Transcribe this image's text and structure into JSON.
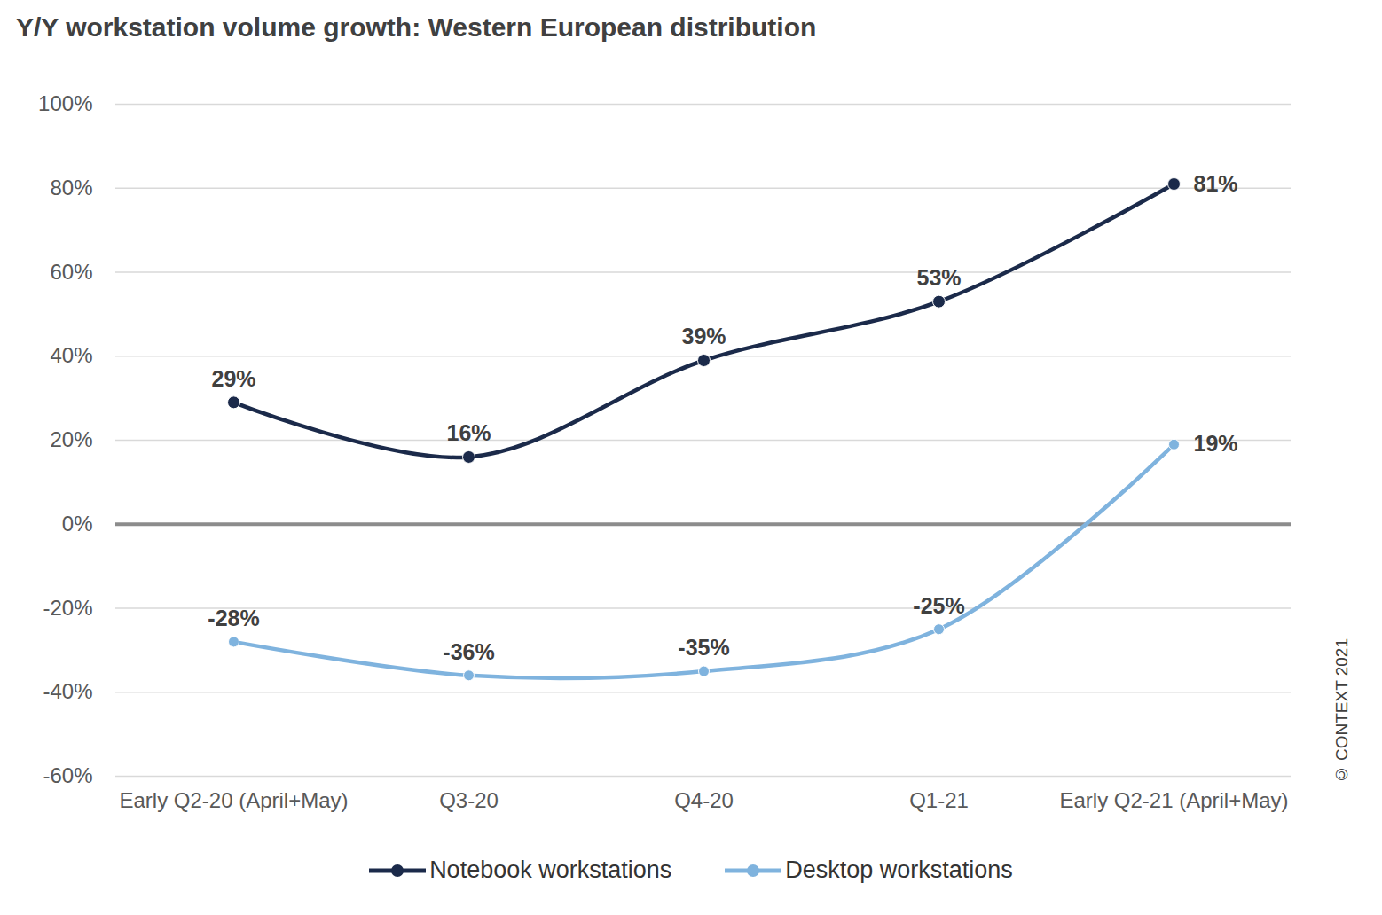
{
  "chart_data": {
    "type": "line",
    "title": "Y/Y workstation volume growth: Western European distribution",
    "annotations": [
      "© CONTEXT 2021"
    ],
    "categories": [
      "Early Q2-20 (April+May)",
      "Q3-20",
      "Q4-20",
      "Q1-21",
      "Early Q2-21 (April+May)"
    ],
    "series": [
      {
        "name": "Notebook workstations",
        "color": "#1b2a4a",
        "marker": "circle",
        "values": [
          29,
          16,
          39,
          53,
          81
        ],
        "value_labels": [
          "29%",
          "16%",
          "39%",
          "53%",
          "81%"
        ]
      },
      {
        "name": "Desktop workstations",
        "color": "#7fb3de",
        "marker": "circle",
        "values": [
          -28,
          -36,
          -35,
          -25,
          19
        ],
        "value_labels": [
          "-28%",
          "-36%",
          "-35%",
          "-25%",
          "19%"
        ]
      }
    ],
    "ylim": [
      -60,
      100
    ],
    "yticks": [
      {
        "value": -60,
        "label": "-60%"
      },
      {
        "value": -40,
        "label": "-40%"
      },
      {
        "value": -20,
        "label": "-20%"
      },
      {
        "value": 0,
        "label": "0%"
      },
      {
        "value": 20,
        "label": "20%"
      },
      {
        "value": 40,
        "label": "40%"
      },
      {
        "value": 60,
        "label": "60%"
      },
      {
        "value": 80,
        "label": "80%"
      },
      {
        "value": 100,
        "label": "100%"
      }
    ],
    "grid": true,
    "data_labels": true,
    "legend": "bottom"
  }
}
